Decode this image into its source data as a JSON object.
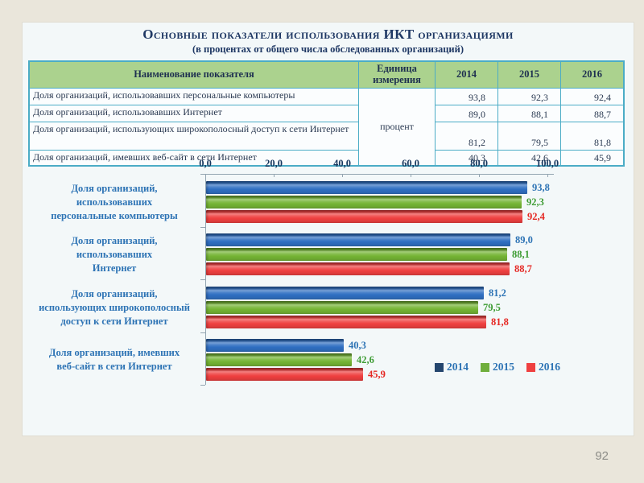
{
  "page": {
    "number": "92"
  },
  "slide": {
    "title": "Основные показатели использования ИКТ организациями",
    "subtitle": "(в процентах от общего числа обследованных организаций)"
  },
  "colors": {
    "canvas_background": "#EAE6DB",
    "slide_background": "#F3F8F9",
    "table_border": "#4BACC6",
    "table_header_background": "#ABD28E",
    "title_text": "#1F3864",
    "axis_text": "#17375E",
    "category_label_text": "#2E74B5",
    "axis_line": "#93A5B1"
  },
  "table": {
    "header": {
      "name": "Наименование показателя",
      "unit": "Единица измерения",
      "years": [
        "2014",
        "2015",
        "2016"
      ]
    },
    "unit_value": "процент",
    "rows": [
      {
        "name": "Доля организаций, использовавших персональные компьютеры",
        "values": [
          "93,8",
          "92,3",
          "92,4"
        ]
      },
      {
        "name": "Доля организаций, использовавших Интернет",
        "values": [
          "89,0",
          "88,1",
          "88,7"
        ]
      },
      {
        "name": "Доля организаций, использующих широкополосный доступ к сети Интернет",
        "values": [
          "81,2",
          "79,5",
          "81,8"
        ]
      },
      {
        "name": "Доля организаций, имевших веб-сайт в сети Интернет",
        "values": [
          "40,3",
          "42,6",
          "45,9"
        ]
      }
    ]
  },
  "chart_data": {
    "type": "bar",
    "orientation": "horizontal",
    "title": "",
    "xlabel": "",
    "ylabel": "",
    "xlim": [
      0,
      100
    ],
    "grid": false,
    "value_labels": true,
    "legend_position": "bottom-right",
    "x_ticks": [
      {
        "value": 0,
        "label": "0,0"
      },
      {
        "value": 20,
        "label": "20,0"
      },
      {
        "value": 40,
        "label": "40,0"
      },
      {
        "value": 60,
        "label": "60,0"
      },
      {
        "value": 80,
        "label": "80,0"
      },
      {
        "value": 100,
        "label": "100,0"
      }
    ],
    "categories": [
      {
        "label": "Доля организаций, использовавших персональные компьютеры",
        "label_lines": [
          "Доля организаций,",
          "использовавших",
          "персональные компьютеры"
        ]
      },
      {
        "label": "Доля организаций, использовавших Интернет",
        "label_lines": [
          "Доля организаций,",
          "использовавших",
          "Интернет"
        ]
      },
      {
        "label": "Доля организаций, использующих широкополосный доступ к сети Интернет",
        "label_lines": [
          "Доля организаций,",
          "использующих широкополосный",
          "доступ к сети Интернет"
        ]
      },
      {
        "label": "Доля организаций, имевших веб-сайт в сети Интернет",
        "label_lines": [
          "Доля организаций, имевших",
          "веб-сайт в сети Интернет"
        ]
      }
    ],
    "series": [
      {
        "name": "2014",
        "color": "#2F6FC2",
        "legend_color": "#24466E",
        "label_color": "#2E74B5",
        "values": [
          93.8,
          89.0,
          81.2,
          40.3
        ],
        "display": [
          "93,8",
          "89,0",
          "81,2",
          "40,3"
        ]
      },
      {
        "name": "2015",
        "color": "#74B434",
        "legend_color": "#6FAE3C",
        "label_color": "#3E9C34",
        "values": [
          92.3,
          88.1,
          79.5,
          42.6
        ],
        "display": [
          "92,3",
          "88,1",
          "79,5",
          "42,6"
        ]
      },
      {
        "name": "2016",
        "color": "#EF4040",
        "legend_color": "#EF4040",
        "label_color": "#E52823",
        "values": [
          92.4,
          88.7,
          81.8,
          45.9
        ],
        "display": [
          "92,4",
          "88,7",
          "81,8",
          "45,9"
        ]
      }
    ]
  }
}
